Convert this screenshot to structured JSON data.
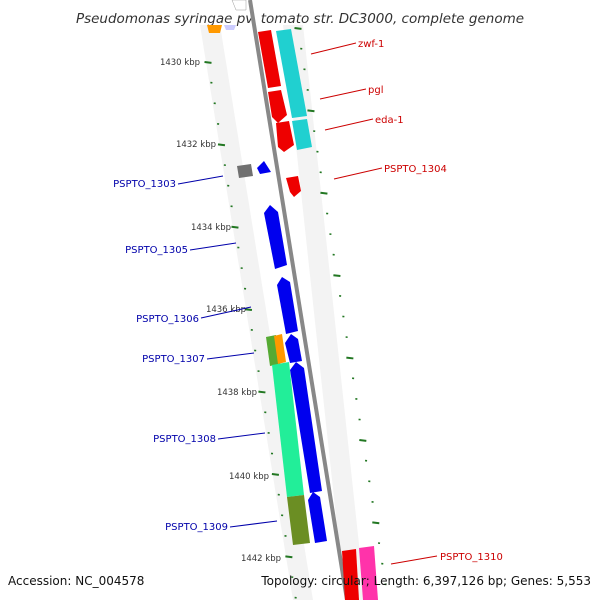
{
  "title": "Pseudomonas syringae pv. tomato str. DC3000, complete genome",
  "accession": "Accession: NC_004578",
  "summary": "Topology: circular; Length: 6,397,126 bp; Genes: 5,553",
  "ticks": [
    "1430 kbp",
    "1432 kbp",
    "1434 kbp",
    "1436 kbp",
    "1438 kbp",
    "1440 kbp",
    "1442 kbp"
  ],
  "colors": {
    "forward_label": "#cc0000",
    "reverse_label": "#0000aa",
    "backbone": "#888888",
    "tick_marks": "#227722"
  },
  "genes_forward": [
    {
      "label": "zwf-1",
      "color": "#ee0000"
    },
    {
      "label": "pgl",
      "color": "#ee0000"
    },
    {
      "label": "eda-1",
      "color": "#ee0000"
    },
    {
      "label": "PSPTO_1304",
      "color": "#ee0000"
    },
    {
      "label": "PSPTO_1310",
      "color": "#ee0000"
    }
  ],
  "genes_reverse": [
    {
      "label": "PSPTO_1303",
      "color": "#0000ee"
    },
    {
      "label": "PSPTO_1305",
      "color": "#0000ee"
    },
    {
      "label": "PSPTO_1306",
      "color": "#0000ee"
    },
    {
      "label": "PSPTO_1307",
      "color": "#0000ee"
    },
    {
      "label": "PSPTO_1308",
      "color": "#0000ee"
    },
    {
      "label": "PSPTO_1309",
      "color": "#0000ee"
    }
  ]
}
